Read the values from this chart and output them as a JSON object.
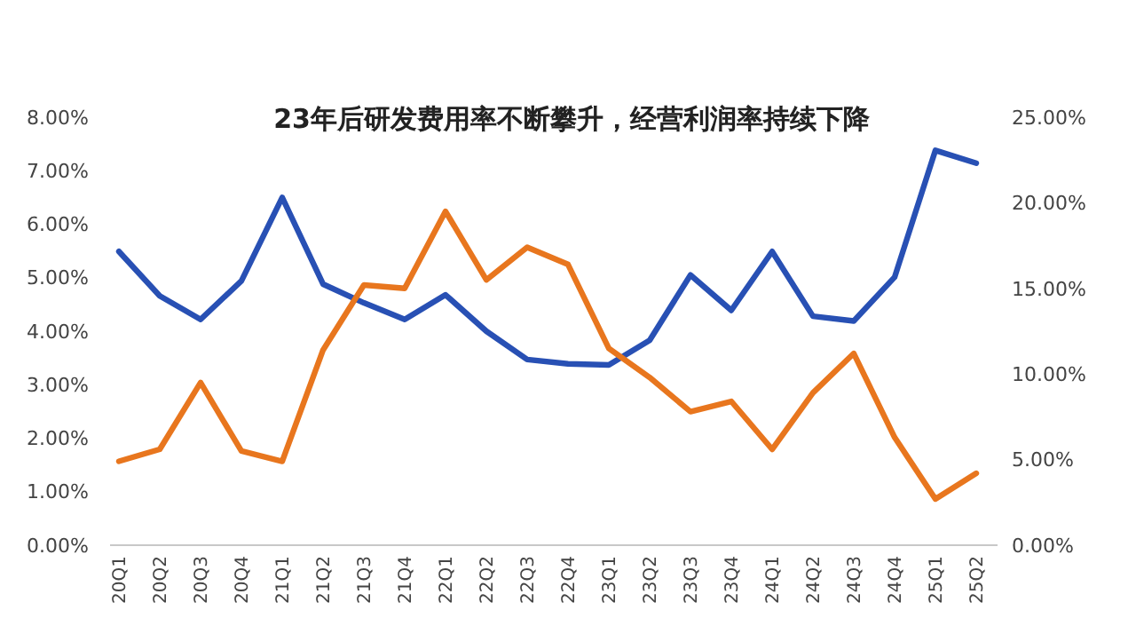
{
  "chart_data": {
    "type": "line",
    "title": "23年后研发费用率不断攀升，经营利润率持续下降",
    "categories": [
      "20Q1",
      "20Q2",
      "20Q3",
      "20Q4",
      "21Q1",
      "21Q2",
      "21Q3",
      "21Q4",
      "22Q1",
      "22Q2",
      "22Q3",
      "22Q4",
      "23Q1",
      "23Q2",
      "23Q3",
      "23Q4",
      "24Q1",
      "24Q2",
      "24Q3",
      "24Q4",
      "25Q1",
      "25Q2"
    ],
    "series": [
      {
        "color": "#2850b4",
        "values": [
          5.49,
          4.66,
          4.22,
          4.94,
          6.5,
          4.88,
          4.53,
          4.22,
          4.68,
          4.0,
          3.47,
          3.39,
          3.37,
          3.83,
          5.05,
          4.39,
          5.49,
          4.28,
          4.19,
          5.01,
          7.38,
          7.14
        ]
      },
      {
        "color": "#e8761e",
        "axis": "y2",
        "values": [
          4.9,
          5.6,
          9.5,
          5.5,
          4.9,
          11.4,
          15.2,
          15.0,
          19.5,
          15.5,
          17.4,
          16.4,
          11.5,
          9.8,
          7.8,
          8.4,
          5.6,
          8.9,
          11.2,
          6.3,
          2.7,
          4.2
        ]
      }
    ],
    "ylim": [
      0,
      8
    ],
    "yticks": [
      {
        "value": 0,
        "label": "0.00%"
      },
      {
        "value": 1,
        "label": "1.00%"
      },
      {
        "value": 2,
        "label": "2.00%"
      },
      {
        "value": 3,
        "label": "3.00%"
      },
      {
        "value": 4,
        "label": "4.00%"
      },
      {
        "value": 5,
        "label": "5.00%"
      },
      {
        "value": 6,
        "label": "6.00%"
      },
      {
        "value": 7,
        "label": "7.00%"
      },
      {
        "value": 8,
        "label": "8.00%"
      }
    ],
    "y2lim": [
      0,
      25
    ],
    "y2ticks": [
      {
        "value": 0,
        "label": "0.00%"
      },
      {
        "value": 5,
        "label": "5.00%"
      },
      {
        "value": 10,
        "label": "10.00%"
      },
      {
        "value": 15,
        "label": "15.00%"
      },
      {
        "value": 20,
        "label": "20.00%"
      },
      {
        "value": 25,
        "label": "25.00%"
      }
    ],
    "grid": false,
    "marker": "none",
    "line_style": "solid"
  }
}
